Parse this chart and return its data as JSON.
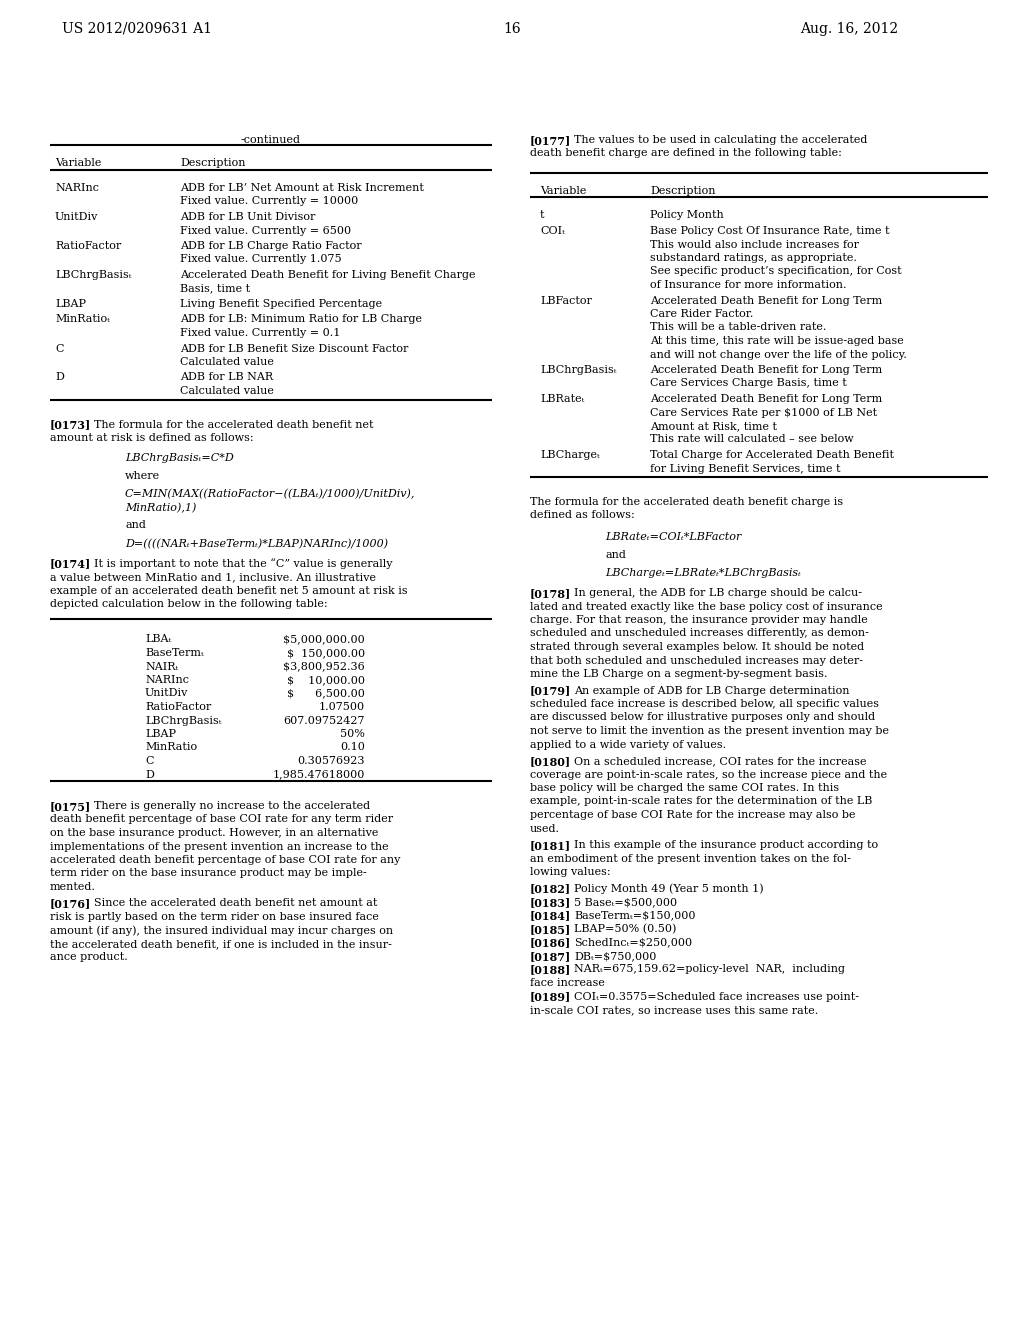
{
  "background_color": "#ffffff",
  "page_number": "16",
  "header_left": "US 2012/0209631 A1",
  "header_right": "Aug. 16, 2012",
  "table1_title": "-continued",
  "table1_headers": [
    "Variable",
    "Description"
  ],
  "table1_rows": [
    [
      "NARInc",
      [
        "ADB for LB’ Net Amount at Risk Increment",
        "Fixed value. Currently = 10000"
      ]
    ],
    [
      "UnitDiv",
      [
        "ADB for LB Unit Divisor",
        "Fixed value. Currently = 6500"
      ]
    ],
    [
      "RatioFactor",
      [
        "ADB for LB Charge Ratio Factor",
        "Fixed value. Currently 1.075"
      ]
    ],
    [
      "LBChrgBasisₜ",
      [
        "Accelerated Death Benefit for Living Benefit Charge",
        "Basis, time t"
      ]
    ],
    [
      "LBAP",
      [
        "Living Benefit Specified Percentage"
      ]
    ],
    [
      "MinRatioₜ",
      [
        "ADB for LB: Minimum Ratio for LB Charge",
        "Fixed value. Currently = 0.1"
      ]
    ],
    [
      "C",
      [
        "ADB for LB Benefit Size Discount Factor",
        "Calculated value"
      ]
    ],
    [
      "D",
      [
        "ADB for LB NAR",
        "Calculated value"
      ]
    ]
  ],
  "para173_label": "[0173]",
  "para173_lines": [
    "The formula for the accelerated death benefit net",
    "amount at risk is defined as follows:"
  ],
  "formula173_1": "LBChrgBasisₜ=C*D",
  "formula173_where": "where",
  "formula173_2a": "C=MIN(MAX((RatioFactor−((LBAₜ)/1000)/UnitDiv),",
  "formula173_2b": "MinRatio),1)",
  "formula173_and": "and",
  "formula173_3": "D=((((NARₜ+BaseTermₜ)*LBAP)NARInc)/1000)",
  "para174_label": "[0174]",
  "para174_lines": [
    "It is important to note that the “C” value is generally",
    "a value between MinRatio and 1, inclusive. An illustrative",
    "example of an accelerated death benefit net 5 amount at risk is",
    "depicted calculation below in the following table:"
  ],
  "table3_rows": [
    [
      "LBAₜ",
      "$5,000,000.00"
    ],
    [
      "BaseTermₜ",
      "$  150,000.00"
    ],
    [
      "NAIRₜ",
      "$3,800,952.36"
    ],
    [
      "NARInc",
      "$    10,000.00"
    ],
    [
      "UnitDiv",
      "$      6,500.00"
    ],
    [
      "RatioFactor",
      "1.07500"
    ],
    [
      "LBChrgBasisₜ",
      "607.09752427"
    ],
    [
      "LBAP",
      "50%"
    ],
    [
      "MinRatio",
      "0.10"
    ],
    [
      "C",
      "0.30576923"
    ],
    [
      "D",
      "1,985.47618000"
    ]
  ],
  "para175_label": "[0175]",
  "para175_lines": [
    "There is generally no increase to the accelerated",
    "death benefit percentage of base COI rate for any term rider",
    "on the base insurance product. However, in an alternative",
    "implementations of the present invention an increase to the",
    "accelerated death benefit percentage of base COI rate for any",
    "term rider on the base insurance product may be imple-",
    "mented."
  ],
  "para176_label": "[0176]",
  "para176_lines": [
    "Since the accelerated death benefit net amount at",
    "risk is partly based on the term rider on base insured face",
    "amount (if any), the insured individual may incur charges on",
    "the accelerated death benefit, if one is included in the insur-",
    "ance product."
  ],
  "para177_label": "[0177]",
  "para177_lines": [
    "The values to be used in calculating the accelerated",
    "death benefit charge are defined in the following table:"
  ],
  "table2_headers": [
    "Variable",
    "Description"
  ],
  "table2_rows": [
    [
      "t",
      [
        "Policy Month"
      ]
    ],
    [
      "COIₜ",
      [
        "Base Policy Cost Of Insurance Rate, time t",
        "This would also include increases for",
        "substandard ratings, as appropriate.",
        "See specific product’s specification, for Cost",
        "of Insurance for more information."
      ]
    ],
    [
      "LBFactor",
      [
        "Accelerated Death Benefit for Long Term",
        "Care Rider Factor.",
        "This will be a table-driven rate.",
        "At this time, this rate will be issue-aged base",
        "and will not change over the life of the policy."
      ]
    ],
    [
      "LBChrgBasisₜ",
      [
        "Accelerated Death Benefit for Long Term",
        "Care Services Charge Basis, time t"
      ]
    ],
    [
      "LBRateₜ",
      [
        "Accelerated Death Benefit for Long Term",
        "Care Services Rate per $1000 of LB Net",
        "Amount at Risk, time t",
        "This rate will calculated – see below"
      ]
    ],
    [
      "LBChargeₜ",
      [
        "Total Charge for Accelerated Death Benefit",
        "for Living Benefit Services, time t"
      ]
    ]
  ],
  "right_intro_lines": [
    "The formula for the accelerated death benefit charge is",
    "defined as follows:"
  ],
  "formula_right_1": "LBRateₜ=COIₜ*LBFactor",
  "formula_right_and": "and",
  "formula_right_2": "LBChargeₜ=LBRateₜ*LBChrgBasisₜ",
  "para178_label": "[0178]",
  "para178_lines": [
    "In general, the ADB for LB charge should be calcu-",
    "lated and treated exactly like the base policy cost of insurance",
    "charge. For that reason, the insurance provider may handle",
    "scheduled and unscheduled increases differently, as demon-",
    "strated through several examples below. It should be noted",
    "that both scheduled and unscheduled increases may deter-",
    "mine the LB Charge on a segment-by-segment basis."
  ],
  "para179_label": "[0179]",
  "para179_lines": [
    "An example of ADB for LB Charge determination",
    "scheduled face increase is described below, all specific values",
    "are discussed below for illustrative purposes only and should",
    "not serve to limit the invention as the present invention may be",
    "applied to a wide variety of values."
  ],
  "para180_label": "[0180]",
  "para180_lines": [
    "On a scheduled increase, COI rates for the increase",
    "coverage are point-in-scale rates, so the increase piece and the",
    "base policy will be charged the same COI rates. In this",
    "example, point-in-scale rates for the determination of the LB",
    "percentage of base COI Rate for the increase may also be",
    "used."
  ],
  "para181_label": "[0181]",
  "para181_lines": [
    "In this example of the insurance product according to",
    "an embodiment of the present invention takes on the fol-",
    "lowing values:"
  ],
  "bullets": [
    [
      "[0182]",
      "Policy Month 49 (Year 5 month 1)"
    ],
    [
      "[0183]",
      "5 Baseₜ=$500,000"
    ],
    [
      "[0184]",
      "BaseTermₜ=$150,000"
    ],
    [
      "[0185]",
      "LBAP=50% (0.50)"
    ],
    [
      "[0186]",
      "SchedIncₜ=$250,000"
    ],
    [
      "[0187]",
      "DBₜ=$750,000"
    ],
    [
      "[0188]",
      "NARₜ=675,159.62=policy-level  NAR,  including",
      "face increase"
    ],
    [
      "[0189]",
      "COIₜ=0.3575=Scheduled face increases use point-",
      "in-scale COI rates, so increase uses this same rate."
    ]
  ]
}
